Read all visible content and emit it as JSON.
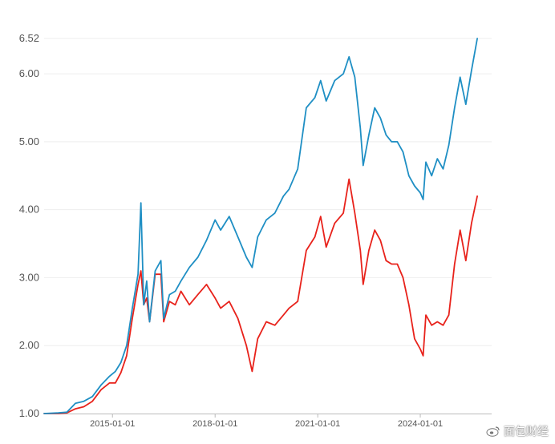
{
  "chart_data": {
    "type": "line",
    "x_ticks": [
      "2015-01-01",
      "2018-01-01",
      "2021-01-01",
      "2024-01-01"
    ],
    "y_ticks": [
      "1.00",
      "2.00",
      "3.00",
      "4.00",
      "5.00",
      "6.00",
      "6.52"
    ],
    "ylim": [
      1.0,
      6.52
    ],
    "xlim": [
      "2013-01-01",
      "2026-02-01"
    ],
    "grid": true,
    "colors": {
      "blue": "#1f8fc4",
      "red": "#e8221b"
    },
    "series": [
      {
        "color": "#1f8fc4",
        "points": [
          [
            "2013-01-01",
            1.0
          ],
          [
            "2013-06-01",
            1.01
          ],
          [
            "2013-09-01",
            1.02
          ],
          [
            "2013-12-01",
            1.15
          ],
          [
            "2014-03-01",
            1.18
          ],
          [
            "2014-06-01",
            1.25
          ],
          [
            "2014-09-01",
            1.42
          ],
          [
            "2014-12-01",
            1.55
          ],
          [
            "2015-02-01",
            1.62
          ],
          [
            "2015-04-01",
            1.75
          ],
          [
            "2015-06-01",
            2.0
          ],
          [
            "2015-08-01",
            2.55
          ],
          [
            "2015-10-01",
            3.05
          ],
          [
            "2015-11-01",
            4.1
          ],
          [
            "2015-12-01",
            2.6
          ],
          [
            "2016-01-01",
            2.95
          ],
          [
            "2016-02-01",
            2.35
          ],
          [
            "2016-04-01",
            3.1
          ],
          [
            "2016-06-01",
            3.25
          ],
          [
            "2016-07-01",
            2.4
          ],
          [
            "2016-09-01",
            2.75
          ],
          [
            "2016-11-01",
            2.8
          ],
          [
            "2017-01-01",
            2.95
          ],
          [
            "2017-04-01",
            3.15
          ],
          [
            "2017-07-01",
            3.3
          ],
          [
            "2017-10-01",
            3.55
          ],
          [
            "2018-01-01",
            3.85
          ],
          [
            "2018-03-01",
            3.7
          ],
          [
            "2018-06-01",
            3.9
          ],
          [
            "2018-09-01",
            3.6
          ],
          [
            "2018-12-01",
            3.3
          ],
          [
            "2019-02-01",
            3.15
          ],
          [
            "2019-04-01",
            3.6
          ],
          [
            "2019-07-01",
            3.85
          ],
          [
            "2019-10-01",
            3.95
          ],
          [
            "2020-01-01",
            4.2
          ],
          [
            "2020-03-01",
            4.3
          ],
          [
            "2020-06-01",
            4.6
          ],
          [
            "2020-09-01",
            5.5
          ],
          [
            "2020-12-01",
            5.65
          ],
          [
            "2021-02-01",
            5.9
          ],
          [
            "2021-04-01",
            5.6
          ],
          [
            "2021-07-01",
            5.9
          ],
          [
            "2021-10-01",
            6.0
          ],
          [
            "2021-12-01",
            6.25
          ],
          [
            "2022-02-01",
            5.95
          ],
          [
            "2022-04-01",
            5.2
          ],
          [
            "2022-05-01",
            4.65
          ],
          [
            "2022-07-01",
            5.1
          ],
          [
            "2022-09-01",
            5.5
          ],
          [
            "2022-11-01",
            5.35
          ],
          [
            "2023-01-01",
            5.1
          ],
          [
            "2023-03-01",
            5.0
          ],
          [
            "2023-05-01",
            5.0
          ],
          [
            "2023-07-01",
            4.85
          ],
          [
            "2023-09-01",
            4.5
          ],
          [
            "2023-11-01",
            4.35
          ],
          [
            "2024-01-01",
            4.25
          ],
          [
            "2024-02-01",
            4.15
          ],
          [
            "2024-03-01",
            4.7
          ],
          [
            "2024-05-01",
            4.5
          ],
          [
            "2024-07-01",
            4.75
          ],
          [
            "2024-09-01",
            4.6
          ],
          [
            "2024-11-01",
            4.95
          ],
          [
            "2025-01-01",
            5.5
          ],
          [
            "2025-03-01",
            5.95
          ],
          [
            "2025-05-01",
            5.55
          ],
          [
            "2025-07-01",
            6.05
          ],
          [
            "2025-09-01",
            6.52
          ]
        ]
      },
      {
        "color": "#e8221b",
        "points": [
          [
            "2013-01-01",
            1.0
          ],
          [
            "2013-06-01",
            1.0
          ],
          [
            "2013-09-01",
            1.01
          ],
          [
            "2013-12-01",
            1.07
          ],
          [
            "2014-03-01",
            1.1
          ],
          [
            "2014-06-01",
            1.18
          ],
          [
            "2014-09-01",
            1.35
          ],
          [
            "2014-12-01",
            1.45
          ],
          [
            "2015-02-01",
            1.45
          ],
          [
            "2015-04-01",
            1.6
          ],
          [
            "2015-06-01",
            1.85
          ],
          [
            "2015-08-01",
            2.4
          ],
          [
            "2015-10-01",
            2.9
          ],
          [
            "2015-11-01",
            3.1
          ],
          [
            "2015-12-01",
            2.6
          ],
          [
            "2016-01-01",
            2.7
          ],
          [
            "2016-02-01",
            2.35
          ],
          [
            "2016-04-01",
            3.05
          ],
          [
            "2016-06-01",
            3.05
          ],
          [
            "2016-07-01",
            2.35
          ],
          [
            "2016-09-01",
            2.65
          ],
          [
            "2016-11-01",
            2.6
          ],
          [
            "2017-01-01",
            2.8
          ],
          [
            "2017-04-01",
            2.6
          ],
          [
            "2017-07-01",
            2.75
          ],
          [
            "2017-10-01",
            2.9
          ],
          [
            "2018-01-01",
            2.7
          ],
          [
            "2018-03-01",
            2.55
          ],
          [
            "2018-06-01",
            2.65
          ],
          [
            "2018-09-01",
            2.4
          ],
          [
            "2018-12-01",
            2.0
          ],
          [
            "2019-02-01",
            1.62
          ],
          [
            "2019-04-01",
            2.1
          ],
          [
            "2019-07-01",
            2.35
          ],
          [
            "2019-10-01",
            2.3
          ],
          [
            "2020-01-01",
            2.45
          ],
          [
            "2020-03-01",
            2.55
          ],
          [
            "2020-06-01",
            2.65
          ],
          [
            "2020-09-01",
            3.4
          ],
          [
            "2020-12-01",
            3.6
          ],
          [
            "2021-02-01",
            3.9
          ],
          [
            "2021-04-01",
            3.45
          ],
          [
            "2021-07-01",
            3.8
          ],
          [
            "2021-10-01",
            3.95
          ],
          [
            "2021-12-01",
            4.45
          ],
          [
            "2022-02-01",
            3.95
          ],
          [
            "2022-04-01",
            3.4
          ],
          [
            "2022-05-01",
            2.9
          ],
          [
            "2022-07-01",
            3.4
          ],
          [
            "2022-09-01",
            3.7
          ],
          [
            "2022-11-01",
            3.55
          ],
          [
            "2023-01-01",
            3.25
          ],
          [
            "2023-03-01",
            3.2
          ],
          [
            "2023-05-01",
            3.2
          ],
          [
            "2023-07-01",
            3.0
          ],
          [
            "2023-09-01",
            2.6
          ],
          [
            "2023-11-01",
            2.1
          ],
          [
            "2024-01-01",
            1.95
          ],
          [
            "2024-02-01",
            1.85
          ],
          [
            "2024-03-01",
            2.45
          ],
          [
            "2024-05-01",
            2.3
          ],
          [
            "2024-07-01",
            2.35
          ],
          [
            "2024-09-01",
            2.3
          ],
          [
            "2024-11-01",
            2.45
          ],
          [
            "2025-01-01",
            3.2
          ],
          [
            "2025-03-01",
            3.7
          ],
          [
            "2025-05-01",
            3.25
          ],
          [
            "2025-07-01",
            3.8
          ],
          [
            "2025-09-01",
            4.2
          ]
        ]
      }
    ]
  },
  "watermark": {
    "text": "面包财经",
    "icon": "weibo-logo-icon"
  }
}
